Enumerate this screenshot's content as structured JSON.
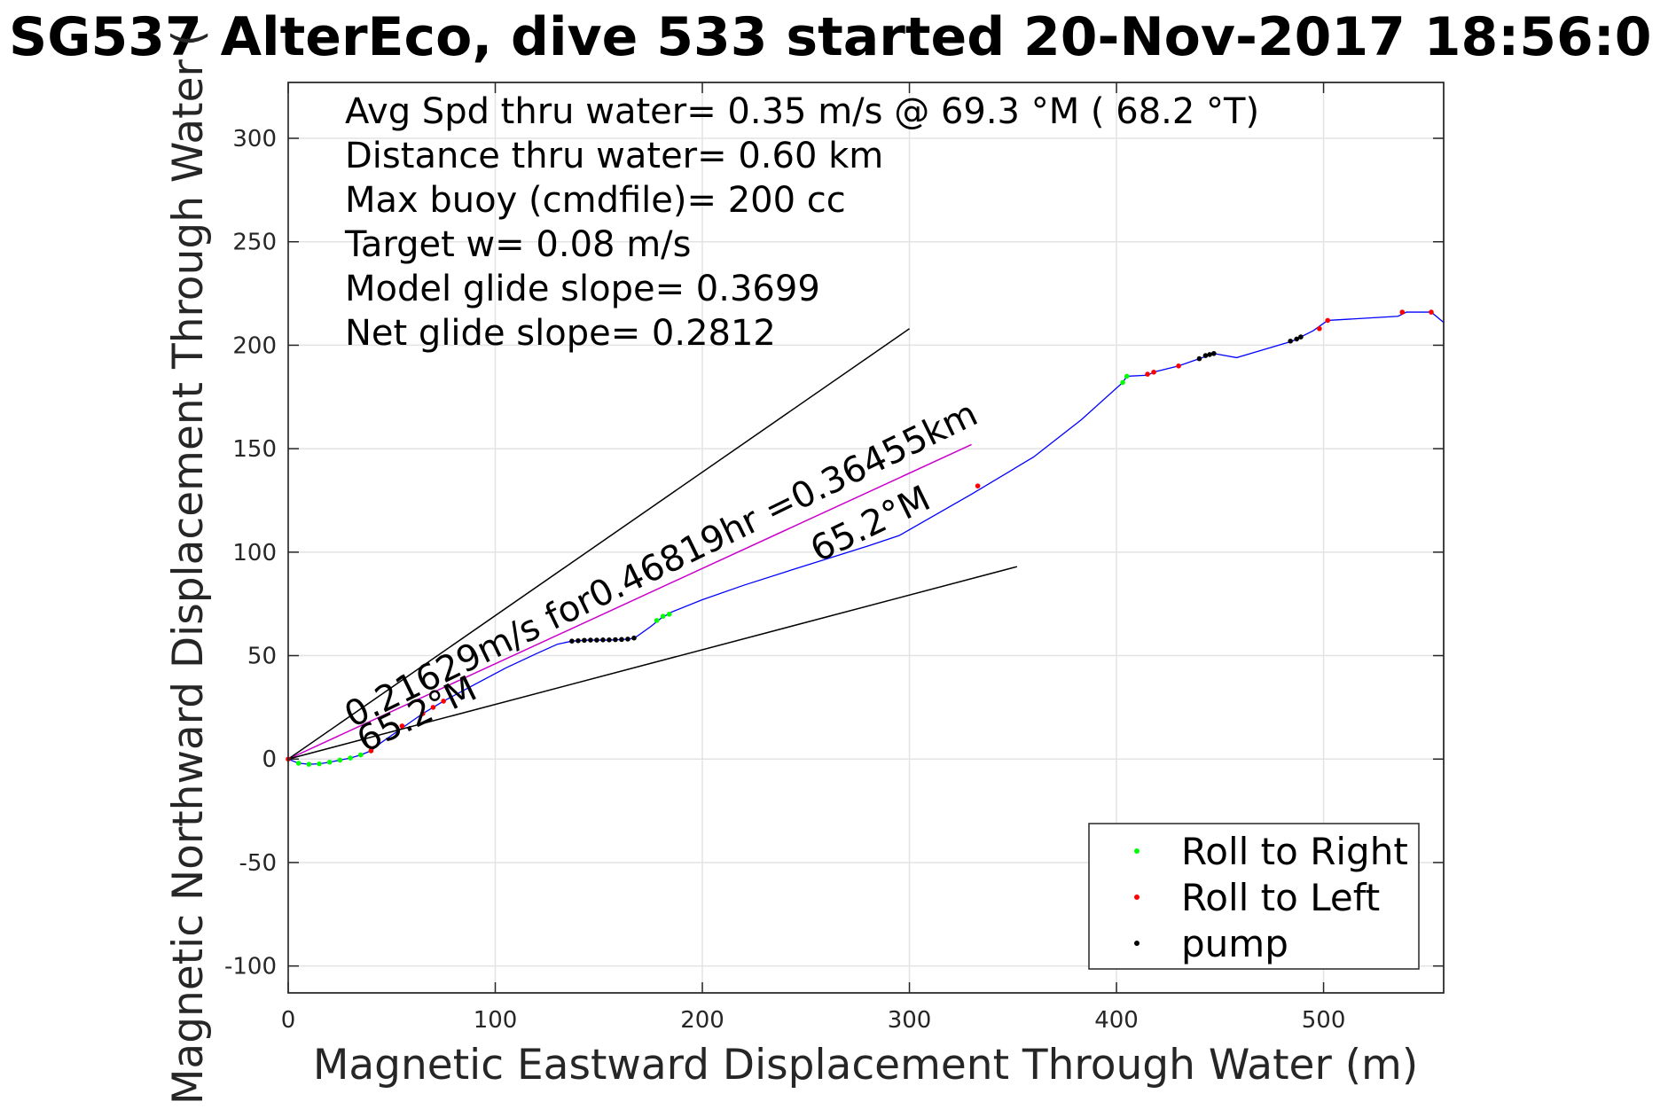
{
  "chart_data": {
    "type": "line",
    "title": "SG537 AlterEco, dive 533 started 20-Nov-2017 18:56:0",
    "xlabel": "Magnetic Eastward Displacement Through Water (m)",
    "ylabel": "Magnetic Northward Displacement Through Water (",
    "xlim": [
      0,
      558
    ],
    "ylim": [
      -113,
      327
    ],
    "grid": true,
    "legend_position": "bottom-right",
    "xticks": [
      0,
      100,
      200,
      300,
      400,
      500
    ],
    "xtick_labels": [
      "0",
      "100",
      "200",
      "300",
      "400",
      "500"
    ],
    "yticks": [
      -100,
      -50,
      0,
      50,
      100,
      150,
      200,
      250,
      300
    ],
    "ytick_labels": [
      "-100",
      "-50",
      "0",
      "50",
      "100",
      "150",
      "200",
      "250",
      "300"
    ],
    "info_lines": [
      "Avg Spd thru water=  0.35 m/s @  69.3 °M ( 68.2 °T)",
      "Distance thru water=  0.60 km",
      "Max buoy (cmdfile)= 200 cc",
      "Target w= 0.08 m/s",
      "Model glide slope= 0.3699",
      "Net glide slope= 0.2812"
    ],
    "annotations": [
      {
        "text": "0.21629m/s for0.46819hr =0.36455km",
        "x": 31,
        "y": 15,
        "rotation_deg": 26
      },
      {
        "text": "65.2°M",
        "x": 37,
        "y": 3,
        "rotation_deg": 26
      },
      {
        "text": "65.2°M",
        "x": 256,
        "y": 95,
        "rotation_deg": 26
      }
    ],
    "series": [
      {
        "name": "",
        "role": "track",
        "color": "#0000ff",
        "x": [
          0,
          5,
          10,
          15,
          20,
          25,
          30,
          35,
          40,
          45,
          55,
          65,
          75,
          90,
          105,
          120,
          130,
          137,
          145,
          155,
          165,
          168,
          175,
          180,
          185,
          200,
          220,
          245,
          280,
          295,
          330,
          360,
          383,
          403,
          405,
          415,
          418,
          430,
          440,
          447,
          458,
          485,
          495,
          502,
          536,
          540,
          552,
          558
        ],
        "y": [
          0,
          -2,
          -2.5,
          -2.3,
          -1.5,
          -0.5,
          0.5,
          2,
          4,
          8,
          15,
          22,
          28,
          36,
          44,
          51,
          55.5,
          57,
          57.5,
          57.5,
          58,
          59,
          64,
          68,
          71,
          77,
          84,
          92,
          103,
          108,
          128,
          146,
          164,
          182,
          185,
          185.5,
          187,
          190,
          193.5,
          196,
          194,
          202,
          207,
          212,
          214,
          216,
          216,
          211
        ]
      },
      {
        "name": "",
        "role": "average-heading line",
        "color": "#cc00cc",
        "x": [
          0,
          330
        ],
        "y": [
          0,
          152
        ]
      },
      {
        "name": "",
        "role": "glide envelope upper",
        "color": "#000000",
        "x": [
          0,
          300
        ],
        "y": [
          0,
          208
        ]
      },
      {
        "name": "",
        "role": "glide envelope lower",
        "color": "#000000",
        "x": [
          0,
          352
        ],
        "y": [
          0,
          93
        ]
      },
      {
        "name": "Roll to Right",
        "role": "marker",
        "color": "#00ff00",
        "x": [
          5,
          10,
          15,
          20,
          25,
          30,
          35,
          40,
          178,
          181,
          184,
          403,
          405
        ],
        "y": [
          -2,
          -2.5,
          -2.3,
          -1.5,
          -0.5,
          0.5,
          2,
          4,
          67,
          69,
          70,
          182,
          185
        ]
      },
      {
        "name": "Roll to Left",
        "role": "marker",
        "color": "#ff0000",
        "x": [
          0,
          40,
          55,
          65,
          70,
          75,
          333,
          415,
          418,
          430,
          498,
          502,
          538,
          552
        ],
        "y": [
          0,
          4,
          16,
          22,
          25,
          28,
          132,
          186,
          187,
          190,
          208,
          212,
          216,
          216
        ]
      },
      {
        "name": "pump",
        "role": "marker",
        "color": "#000000",
        "x": [
          137,
          140,
          143,
          146,
          149,
          152,
          155,
          158,
          161,
          164,
          167,
          440,
          443,
          445,
          447,
          484,
          487,
          489
        ],
        "y": [
          57,
          57.2,
          57.4,
          57.5,
          57.5,
          57.6,
          57.6,
          57.7,
          57.8,
          58,
          58.5,
          193.5,
          195,
          195.5,
          196,
          202,
          203,
          204
        ]
      }
    ]
  }
}
